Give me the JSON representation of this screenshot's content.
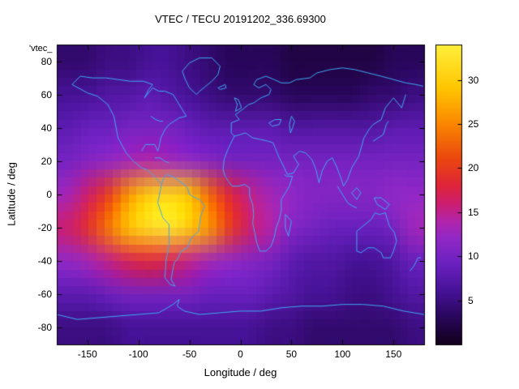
{
  "chart_data": {
    "type": "heatmap",
    "title": "VTEC / TECU 20191202_336.69300",
    "key_label": "'vtec_",
    "xlabel": "Longitude / deg",
    "ylabel": "Latitude / deg",
    "xlim": [
      -180,
      180
    ],
    "ylim": [
      -90,
      90
    ],
    "x_ticks": [
      -150,
      -100,
      -50,
      0,
      50,
      100,
      150
    ],
    "y_ticks": [
      -80,
      -60,
      -40,
      -20,
      0,
      20,
      40,
      60,
      80
    ],
    "colorbar": {
      "min": 0,
      "max": 34,
      "ticks": [
        5,
        10,
        15,
        20,
        25,
        30
      ]
    },
    "colormap": [
      [
        0,
        18,
        0,
        28
      ],
      [
        3,
        40,
        6,
        90
      ],
      [
        6,
        70,
        18,
        150
      ],
      [
        9,
        105,
        32,
        190
      ],
      [
        12,
        145,
        40,
        198
      ],
      [
        14,
        178,
        36,
        170
      ],
      [
        16,
        205,
        30,
        110
      ],
      [
        18,
        222,
        36,
        58
      ],
      [
        21,
        235,
        70,
        16
      ],
      [
        25,
        250,
        134,
        0
      ],
      [
        29,
        255,
        196,
        0
      ],
      [
        34,
        255,
        240,
        60
      ]
    ],
    "grid": {
      "lon_centers": [
        -170,
        -150,
        -130,
        -110,
        -90,
        -70,
        -50,
        -30,
        -10,
        10,
        30,
        50,
        70,
        90,
        110,
        130,
        150,
        170
      ],
      "lat_centers": [
        80,
        60,
        40,
        20,
        0,
        -20,
        -40,
        -60,
        -80
      ],
      "values": [
        [
          4,
          4,
          5,
          5,
          6,
          6,
          5,
          4,
          3,
          3,
          3,
          2,
          2,
          2,
          2,
          2,
          3,
          3
        ],
        [
          6,
          6,
          7,
          7,
          8,
          7,
          6,
          5,
          4,
          4,
          4,
          3,
          3,
          3,
          3,
          4,
          4,
          5
        ],
        [
          8,
          9,
          9,
          10,
          10,
          10,
          9,
          8,
          8,
          8,
          8,
          7,
          7,
          7,
          7,
          7,
          8,
          8
        ],
        [
          10,
          11,
          12,
          13,
          14,
          13,
          12,
          11,
          10,
          10,
          10,
          10,
          10,
          10,
          10,
          10,
          10,
          10
        ],
        [
          13,
          16,
          20,
          26,
          30,
          31,
          29,
          23,
          18,
          15,
          13,
          12,
          11,
          11,
          11,
          11,
          12,
          12
        ],
        [
          16,
          19,
          24,
          29,
          32,
          33,
          30,
          26,
          20,
          16,
          14,
          11,
          10,
          9,
          9,
          9,
          10,
          13
        ],
        [
          12,
          13,
          15,
          17,
          18,
          17,
          15,
          13,
          12,
          11,
          10,
          8,
          7,
          7,
          6,
          6,
          7,
          9
        ],
        [
          8,
          8,
          9,
          10,
          10,
          10,
          10,
          9,
          9,
          9,
          8,
          7,
          6,
          6,
          5,
          5,
          6,
          7
        ],
        [
          5,
          5,
          5,
          6,
          6,
          6,
          6,
          6,
          6,
          6,
          5,
          5,
          4,
          4,
          4,
          4,
          4,
          5
        ]
      ]
    },
    "coastline_color": "#3fa9f5",
    "coastlines": [
      [
        [
          -165,
          66
        ],
        [
          -150,
          61
        ],
        [
          -140,
          59
        ],
        [
          -130,
          54
        ],
        [
          -124,
          47
        ],
        [
          -120,
          34
        ],
        [
          -112,
          25
        ],
        [
          -105,
          20
        ],
        [
          -97,
          16
        ],
        [
          -92,
          15
        ],
        [
          -88,
          13
        ],
        [
          -83,
          10
        ],
        [
          -78,
          7
        ]
      ],
      [
        [
          -77,
          7
        ],
        [
          -79,
          1
        ],
        [
          -81,
          -5
        ],
        [
          -76,
          -14
        ],
        [
          -70,
          -18
        ],
        [
          -70,
          -30
        ],
        [
          -73,
          -40
        ],
        [
          -74,
          -50
        ],
        [
          -69,
          -54
        ],
        [
          -64,
          -55
        ],
        [
          -68,
          -51
        ],
        [
          -65,
          -41
        ],
        [
          -62,
          -39
        ],
        [
          -58,
          -34
        ],
        [
          -52,
          -32
        ],
        [
          -48,
          -26
        ],
        [
          -41,
          -22
        ],
        [
          -39,
          -13
        ],
        [
          -35,
          -7
        ],
        [
          -40,
          -3
        ],
        [
          -44,
          -2
        ],
        [
          -50,
          0
        ],
        [
          -52,
          4
        ],
        [
          -55,
          6
        ],
        [
          -60,
          8
        ],
        [
          -64,
          10
        ],
        [
          -68,
          11
        ],
        [
          -72,
          12
        ],
        [
          -75,
          10
        ],
        [
          -77,
          7
        ]
      ],
      [
        [
          -97,
          26
        ],
        [
          -93,
          30
        ],
        [
          -88,
          30
        ],
        [
          -84,
          30
        ],
        [
          -81,
          26
        ],
        [
          -80,
          28
        ],
        [
          -78,
          34
        ],
        [
          -74,
          39
        ],
        [
          -70,
          42
        ],
        [
          -65,
          44
        ],
        [
          -60,
          46
        ],
        [
          -53,
          47
        ],
        [
          -57,
          51
        ],
        [
          -62,
          56
        ],
        [
          -66,
          60
        ],
        [
          -74,
          62
        ],
        [
          -80,
          62
        ],
        [
          -86,
          64
        ],
        [
          -94,
          58
        ],
        [
          -90,
          63
        ],
        [
          -86,
          66
        ],
        [
          -95,
          68
        ],
        [
          -108,
          68
        ],
        [
          -120,
          69
        ],
        [
          -132,
          70
        ],
        [
          -145,
          70
        ],
        [
          -157,
          71
        ],
        [
          -165,
          66
        ]
      ],
      [
        [
          -43,
          60
        ],
        [
          -50,
          64
        ],
        [
          -54,
          69
        ],
        [
          -57,
          74
        ],
        [
          -50,
          79
        ],
        [
          -40,
          82
        ],
        [
          -28,
          82
        ],
        [
          -20,
          77
        ],
        [
          -22,
          72
        ],
        [
          -28,
          68
        ],
        [
          -34,
          65
        ],
        [
          -40,
          62
        ],
        [
          -43,
          60
        ]
      ],
      [
        [
          -9,
          37
        ],
        [
          -9,
          43
        ],
        [
          -1,
          45
        ],
        [
          -5,
          48
        ],
        [
          2,
          51
        ],
        [
          8,
          54
        ],
        [
          13,
          55
        ],
        [
          20,
          58
        ],
        [
          28,
          60
        ],
        [
          30,
          63
        ],
        [
          25,
          66
        ],
        [
          18,
          64
        ],
        [
          13,
          66
        ],
        [
          16,
          69
        ],
        [
          25,
          71
        ],
        [
          33,
          69
        ],
        [
          40,
          67
        ],
        [
          48,
          67
        ],
        [
          55,
          69
        ],
        [
          68,
          70
        ],
        [
          75,
          73
        ],
        [
          88,
          75
        ],
        [
          100,
          76
        ],
        [
          112,
          75
        ],
        [
          125,
          73
        ],
        [
          138,
          71
        ],
        [
          150,
          69
        ],
        [
          162,
          67
        ],
        [
          172,
          66
        ],
        [
          179,
          65
        ]
      ],
      [
        [
          162,
          60
        ],
        [
          158,
          52
        ],
        [
          150,
          58
        ],
        [
          142,
          52
        ],
        [
          138,
          45
        ],
        [
          130,
          42
        ],
        [
          126,
          39
        ],
        [
          121,
          34
        ],
        [
          116,
          23
        ],
        [
          109,
          16
        ],
        [
          105,
          9
        ],
        [
          101,
          5
        ],
        [
          99,
          9
        ],
        [
          94,
          17
        ],
        [
          90,
          22
        ],
        [
          85,
          20
        ],
        [
          80,
          14
        ],
        [
          77,
          7
        ],
        [
          74,
          15
        ],
        [
          70,
          21
        ],
        [
          64,
          25
        ],
        [
          58,
          26
        ],
        [
          52,
          23
        ],
        [
          57,
          18
        ],
        [
          52,
          13
        ],
        [
          46,
          12
        ],
        [
          43,
          16
        ],
        [
          38,
          22
        ],
        [
          34,
          28
        ],
        [
          32,
          31
        ],
        [
          27,
          32
        ],
        [
          20,
          33
        ],
        [
          12,
          34
        ],
        [
          5,
          37
        ],
        [
          0,
          36
        ],
        [
          -6,
          35
        ],
        [
          -9,
          37
        ]
      ],
      [
        [
          -6,
          35
        ],
        [
          -10,
          30
        ],
        [
          -13,
          26
        ],
        [
          -16,
          21
        ],
        [
          -17,
          15
        ],
        [
          -15,
          11
        ],
        [
          -12,
          8
        ],
        [
          -8,
          5
        ],
        [
          -2,
          5
        ],
        [
          4,
          6
        ],
        [
          9,
          4
        ],
        [
          9,
          -1
        ],
        [
          12,
          -6
        ],
        [
          13,
          -12
        ],
        [
          12,
          -17
        ],
        [
          14,
          -23
        ],
        [
          16,
          -29
        ],
        [
          19,
          -34
        ],
        [
          25,
          -34
        ],
        [
          30,
          -31
        ],
        [
          33,
          -26
        ],
        [
          35,
          -20
        ],
        [
          38,
          -15
        ],
        [
          40,
          -10
        ],
        [
          40,
          -3
        ],
        [
          44,
          1
        ],
        [
          48,
          5
        ],
        [
          51,
          11
        ],
        [
          45,
          11
        ],
        [
          43,
          12
        ]
      ],
      [
        [
          114,
          -22
        ],
        [
          114,
          -34
        ],
        [
          118,
          -35
        ],
        [
          125,
          -32
        ],
        [
          131,
          -32
        ],
        [
          138,
          -35
        ],
        [
          140,
          -38
        ],
        [
          147,
          -38
        ],
        [
          150,
          -34
        ],
        [
          153,
          -28
        ],
        [
          151,
          -23
        ],
        [
          146,
          -19
        ],
        [
          142,
          -11
        ],
        [
          136,
          -12
        ],
        [
          132,
          -11
        ],
        [
          128,
          -15
        ],
        [
          122,
          -18
        ],
        [
          114,
          -22
        ]
      ],
      [
        [
          -180,
          -72
        ],
        [
          -160,
          -75
        ],
        [
          -140,
          -74
        ],
        [
          -120,
          -73
        ],
        [
          -100,
          -72
        ],
        [
          -80,
          -71
        ],
        [
          -66,
          -66
        ],
        [
          -60,
          -63
        ],
        [
          -62,
          -67
        ],
        [
          -55,
          -70
        ],
        [
          -40,
          -72
        ],
        [
          -20,
          -71
        ],
        [
          0,
          -70
        ],
        [
          20,
          -70
        ],
        [
          40,
          -68
        ],
        [
          60,
          -67
        ],
        [
          80,
          -67
        ],
        [
          100,
          -66
        ],
        [
          120,
          -66
        ],
        [
          140,
          -67
        ],
        [
          160,
          -70
        ],
        [
          180,
          -72
        ]
      ],
      [
        [
          44,
          -12
        ],
        [
          50,
          -16
        ],
        [
          47,
          -25
        ],
        [
          44,
          -20
        ],
        [
          44,
          -12
        ]
      ],
      [
        [
          131,
          -2
        ],
        [
          138,
          -2
        ],
        [
          146,
          -6
        ],
        [
          142,
          -9
        ],
        [
          134,
          -6
        ],
        [
          131,
          -2
        ]
      ],
      [
        [
          109,
          1
        ],
        [
          114,
          4
        ],
        [
          118,
          1
        ],
        [
          114,
          -3
        ],
        [
          109,
          1
        ]
      ],
      [
        [
          130,
          32
        ],
        [
          135,
          34
        ],
        [
          140,
          36
        ],
        [
          143,
          42
        ],
        [
          145,
          44
        ]
      ],
      [
        [
          -5,
          50
        ],
        [
          -3,
          54
        ],
        [
          -6,
          58
        ],
        [
          -2,
          57
        ],
        [
          1,
          52
        ],
        [
          -5,
          50
        ]
      ],
      [
        [
          166,
          -46
        ],
        [
          170,
          -43
        ],
        [
          174,
          -38
        ],
        [
          177,
          -38
        ]
      ],
      [
        [
          28,
          43
        ],
        [
          34,
          45
        ],
        [
          40,
          45
        ],
        [
          38,
          42
        ],
        [
          31,
          41
        ],
        [
          28,
          43
        ]
      ],
      [
        [
          50,
          47
        ],
        [
          53,
          44
        ],
        [
          51,
          40
        ],
        [
          49,
          37
        ],
        [
          48,
          42
        ],
        [
          50,
          47
        ]
      ],
      [
        [
          -88,
          47
        ],
        [
          -83,
          45
        ],
        [
          -79,
          44
        ],
        [
          -76,
          44
        ]
      ],
      [
        [
          -22,
          64
        ],
        [
          -15,
          66
        ],
        [
          -14,
          64
        ],
        [
          -20,
          63
        ],
        [
          -22,
          64
        ]
      ],
      [
        [
          -84,
          22
        ],
        [
          -79,
          22
        ],
        [
          -74,
          20
        ],
        [
          -70,
          19
        ]
      ],
      [
        [
          95,
          5
        ],
        [
          100,
          0
        ],
        [
          105,
          -5
        ],
        [
          110,
          -7
        ],
        [
          114,
          -8
        ]
      ]
    ]
  }
}
